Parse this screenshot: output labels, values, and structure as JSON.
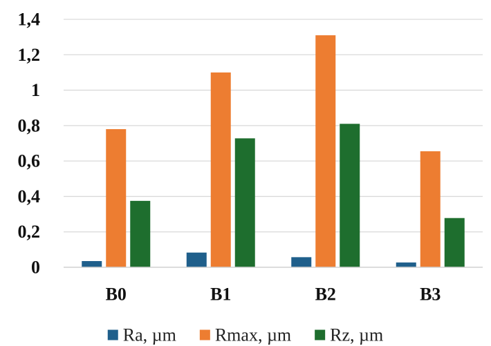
{
  "chart_data": {
    "type": "bar",
    "categories": [
      "B0",
      "B1",
      "B2",
      "B3"
    ],
    "series": [
      {
        "name": "Ra, µm",
        "color": "#1f5f8b",
        "values": [
          0.035,
          0.083,
          0.057,
          0.027
        ]
      },
      {
        "name": "Rmax, µm",
        "color": "#ed7d31",
        "values": [
          0.78,
          1.1,
          1.31,
          0.655
        ]
      },
      {
        "name": "Rz, µm",
        "color": "#1e6e2e",
        "values": [
          0.375,
          0.728,
          0.81,
          0.278
        ]
      }
    ],
    "y_ticks": [
      "0",
      "0,2",
      "0,4",
      "0,6",
      "0,8",
      "1",
      "1,2",
      "1,4"
    ],
    "ylim": [
      0,
      1.4
    ],
    "grid": true,
    "legend_position": "bottom"
  }
}
